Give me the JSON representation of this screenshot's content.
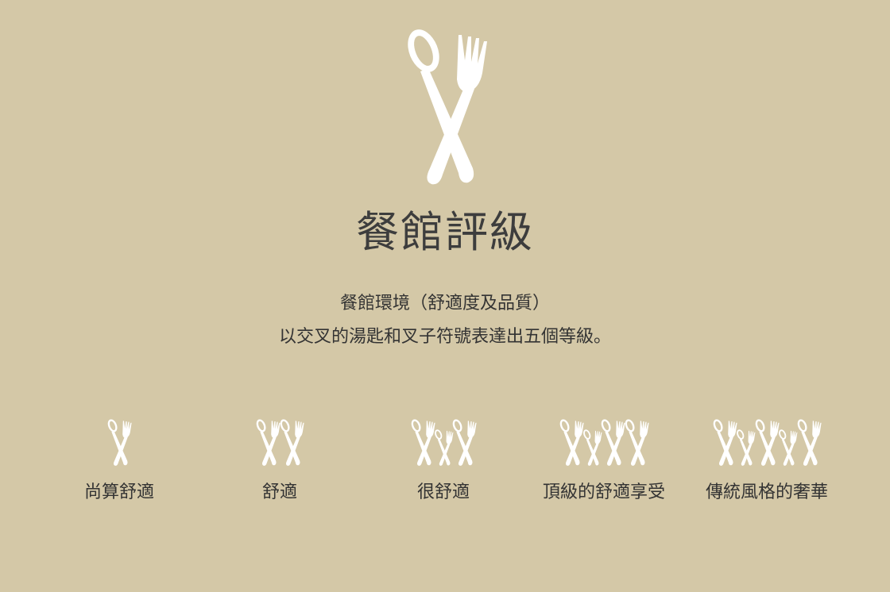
{
  "title": "餐館評級",
  "description": {
    "line1": "餐館環境（舒適度及品質）",
    "line2": "以交叉的湯匙和叉子符號表達出五個等級。"
  },
  "icon_color": "#ffffff",
  "background_color": "#d4c8a7",
  "levels": [
    {
      "label": "尚算舒適",
      "count": 1
    },
    {
      "label": "舒適",
      "count": 2
    },
    {
      "label": "很舒適",
      "count": 3
    },
    {
      "label": "頂級的舒適享受",
      "count": 4
    },
    {
      "label": "傳統風格的奢華",
      "count": 5
    }
  ]
}
